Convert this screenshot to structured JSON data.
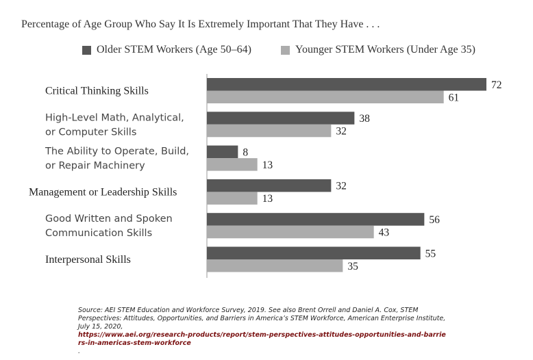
{
  "chart_data": {
    "type": "bar",
    "orientation": "horizontal",
    "title": "Percentage of Age Group Who Say It Is Extremely Important That They Have . . .",
    "categories": [
      "Critical Thinking Skills",
      "High-Level Math, Analytical, or Computer Skills",
      "The Ability to Operate, Build, or Repair Machinery",
      "Management or Leadership Skills",
      "Good Written and Spoken Communication Skills",
      "Interpersonal Skills"
    ],
    "series": [
      {
        "name": "Older STEM Workers (Age 50–64)",
        "color": "#575757",
        "values": [
          72,
          38,
          8,
          32,
          56,
          55
        ]
      },
      {
        "name": "Younger STEM Workers (Under Age 35)",
        "color": "#acacac",
        "values": [
          61,
          32,
          13,
          13,
          43,
          35
        ]
      }
    ],
    "xlim": [
      0,
      80
    ],
    "grid": false,
    "legend": "top"
  },
  "category_lines": [
    [
      "Critical Thinking Skills"
    ],
    [
      "High-Level Math, Analytical,",
      "or Computer Skills"
    ],
    [
      "The Ability to Operate, Build,",
      "or Repair Machinery"
    ],
    [
      "Management or Leadership Skills"
    ],
    [
      "Good Written and Spoken",
      "Communication Skills"
    ],
    [
      "Interpersonal Skills"
    ]
  ],
  "category_fonts": [
    "serif",
    "sans",
    "sans",
    "serif",
    "sans",
    "serif"
  ],
  "source": {
    "text": "Source: AEI STEM Education and Workforce Survey, 2019. See also Brent Orrell and Daniel A. Cox, STEM Perspectives: Attitudes, Opportunities, and Barriers in America’s STEM Workforce, American Enterprise Institute, July 15, 2020,",
    "url": "https://www.aei.org/research-products/report/stem-perspectives-attitudes-opportunities-and-barriers-in-americas-stem-workforce",
    "trailing": "."
  }
}
